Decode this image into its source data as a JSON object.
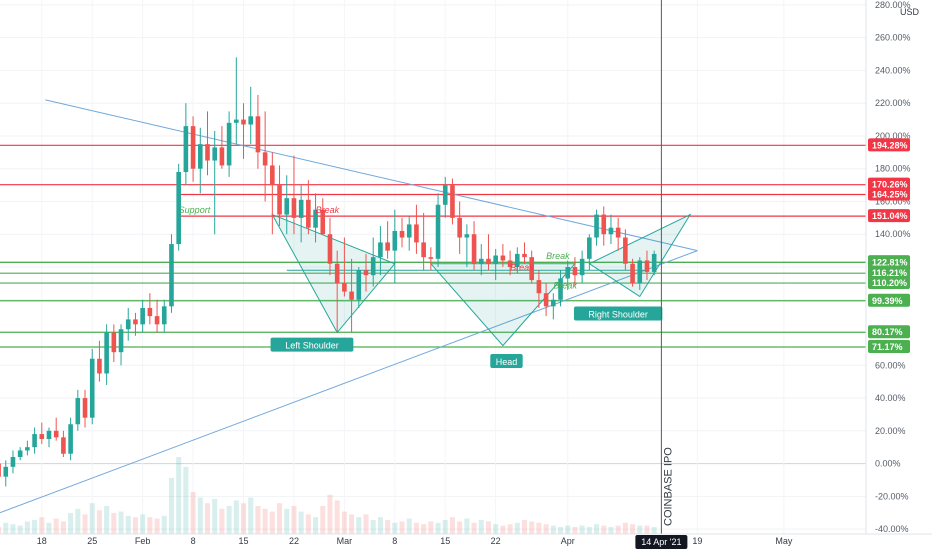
{
  "chart_data": {
    "type": "candlestick",
    "currency": "USD",
    "y_ticks": [
      "280.00%",
      "260.00%",
      "240.00%",
      "220.00%",
      "200.00%",
      "180.00%",
      "160.00%",
      "140.00%",
      "120.00%",
      "100.00%",
      "80.00%",
      "60.00%",
      "40.00%",
      "20.00%",
      "0.00%",
      "-20.00%",
      "-40.00%"
    ],
    "y_tick_values": [
      280,
      260,
      240,
      220,
      200,
      180,
      160,
      140,
      120,
      100,
      80,
      60,
      40,
      20,
      0,
      -20,
      -40
    ],
    "ylim": [
      -43,
      283
    ],
    "x_ticks": [
      {
        "label": "18",
        "day": -14
      },
      {
        "label": "25",
        "day": -7
      },
      {
        "label": "Feb",
        "day": 0
      },
      {
        "label": "8",
        "day": 7
      },
      {
        "label": "15",
        "day": 14
      },
      {
        "label": "22",
        "day": 21
      },
      {
        "label": "Mar",
        "day": 28
      },
      {
        "label": "8",
        "day": 35
      },
      {
        "label": "15",
        "day": 42
      },
      {
        "label": "22",
        "day": 49
      },
      {
        "label": "Apr",
        "day": 59
      },
      {
        "label": "19",
        "day": 77
      },
      {
        "label": "May",
        "day": 89
      }
    ],
    "xlim": [
      -19.8,
      100.4
    ],
    "crosshair": {
      "day": 72,
      "label": "14 Apr '21"
    },
    "ipo_label": "COINBASE IPO",
    "horizontal_levels": [
      {
        "value": 194.28,
        "label": "194.28%",
        "color": "#f23645"
      },
      {
        "value": 170.26,
        "label": "170.26%",
        "color": "#f23645"
      },
      {
        "value": 164.25,
        "label": "164.25%",
        "color": "#f23645"
      },
      {
        "value": 151.04,
        "label": "151.04%",
        "color": "#f23645"
      },
      {
        "value": 122.87,
        "label": "122.87%",
        "color": "#26a69a"
      },
      {
        "value": 122.81,
        "label": "122.81%",
        "color": "#4caf50"
      },
      {
        "value": 116.21,
        "label": "116.21%",
        "color": "#4caf50"
      },
      {
        "value": 110.2,
        "label": "110.20%",
        "color": "#4caf50"
      },
      {
        "value": 99.39,
        "label": "99.39%",
        "color": "#4caf50"
      },
      {
        "value": 80.17,
        "label": "80.17%",
        "color": "#4caf50"
      },
      {
        "value": 71.17,
        "label": "71.17%",
        "color": "#4caf50"
      }
    ],
    "annotations": [
      {
        "text": "Support",
        "day": 5,
        "value": 153,
        "color": "#4caf50"
      },
      {
        "text": "Break",
        "day": 24,
        "value": 153,
        "color": "#f23645"
      },
      {
        "text": "Break",
        "day": 51,
        "value": 118,
        "color": "#f23645"
      },
      {
        "text": "Break",
        "day": 56,
        "value": 125,
        "color": "#4caf50"
      },
      {
        "text": "Break",
        "day": 57,
        "value": 107,
        "color": "#4caf50"
      }
    ],
    "pattern_labels": [
      {
        "text": "Left Shoulder",
        "day": 23.5,
        "value": 72
      },
      {
        "text": "Head",
        "day": 50.5,
        "value": 62
      },
      {
        "text": "Right Shoulder",
        "day": 66,
        "value": 91
      }
    ],
    "candles": [
      [
        -20,
        0,
        5,
        -12,
        -8
      ],
      [
        -19,
        -8,
        2,
        -14,
        -2
      ],
      [
        -18,
        -2,
        8,
        -6,
        4
      ],
      [
        -17,
        4,
        10,
        2,
        8
      ],
      [
        -16,
        8,
        14,
        5,
        10
      ],
      [
        -15,
        10,
        22,
        6,
        18
      ],
      [
        -14,
        18,
        25,
        12,
        15
      ],
      [
        -13,
        15,
        22,
        10,
        20
      ],
      [
        -12,
        20,
        28,
        14,
        16
      ],
      [
        -11,
        16,
        20,
        4,
        6
      ],
      [
        -10,
        6,
        28,
        2,
        24
      ],
      [
        -9,
        24,
        45,
        20,
        40
      ],
      [
        -8,
        40,
        45,
        22,
        28
      ],
      [
        -7,
        28,
        70,
        24,
        64
      ],
      [
        -6,
        64,
        75,
        50,
        55
      ],
      [
        -5,
        55,
        85,
        48,
        80
      ],
      [
        -4,
        80,
        85,
        62,
        68
      ],
      [
        -3,
        68,
        85,
        60,
        82
      ],
      [
        -2,
        82,
        95,
        75,
        88
      ],
      [
        -1,
        88,
        92,
        78,
        85
      ],
      [
        0,
        85,
        100,
        80,
        95
      ],
      [
        1,
        95,
        104,
        85,
        90
      ],
      [
        2,
        90,
        100,
        80,
        85
      ],
      [
        3,
        85,
        100,
        80,
        96
      ],
      [
        4,
        96,
        140,
        92,
        134
      ],
      [
        5,
        134,
        183,
        130,
        178
      ],
      [
        6,
        178,
        220,
        170,
        206
      ],
      [
        7,
        206,
        212,
        172,
        180
      ],
      [
        8,
        180,
        205,
        165,
        195
      ],
      [
        9,
        195,
        215,
        176,
        185
      ],
      [
        10,
        185,
        203,
        140,
        193
      ],
      [
        11,
        193,
        206,
        180,
        182
      ],
      [
        12,
        182,
        215,
        175,
        208
      ],
      [
        13,
        208,
        248,
        195,
        210
      ],
      [
        14,
        210,
        220,
        186,
        207
      ],
      [
        15,
        207,
        230,
        195,
        212
      ],
      [
        16,
        212,
        225,
        180,
        190
      ],
      [
        17,
        190,
        215,
        160,
        182
      ],
      [
        18,
        182,
        190,
        140,
        170
      ],
      [
        19,
        170,
        182,
        145,
        152
      ],
      [
        20,
        152,
        176,
        140,
        162
      ],
      [
        21,
        162,
        188,
        140,
        150
      ],
      [
        22,
        150,
        170,
        135,
        161
      ],
      [
        23,
        161,
        173,
        140,
        144
      ],
      [
        24,
        144,
        165,
        135,
        155
      ],
      [
        25,
        155,
        162,
        140,
        140
      ],
      [
        26,
        140,
        150,
        115,
        122
      ],
      [
        27,
        122,
        130,
        80,
        110
      ],
      [
        28,
        110,
        138,
        102,
        105
      ],
      [
        29,
        105,
        125,
        80,
        100
      ],
      [
        30,
        100,
        120,
        95,
        118
      ],
      [
        31,
        118,
        128,
        105,
        115
      ],
      [
        32,
        115,
        138,
        108,
        126
      ],
      [
        33,
        126,
        145,
        115,
        135
      ],
      [
        34,
        135,
        148,
        125,
        130
      ],
      [
        35,
        130,
        155,
        110,
        142
      ],
      [
        36,
        142,
        150,
        132,
        138
      ],
      [
        37,
        138,
        151,
        130,
        146
      ],
      [
        38,
        146,
        158,
        128,
        135
      ],
      [
        39,
        135,
        153,
        118,
        126
      ],
      [
        40,
        126,
        132,
        118,
        125
      ],
      [
        41,
        125,
        165,
        120,
        158
      ],
      [
        42,
        158,
        175,
        150,
        170
      ],
      [
        43,
        170,
        174,
        146,
        150
      ],
      [
        44,
        150,
        160,
        128,
        138
      ],
      [
        45,
        138,
        146,
        120,
        140
      ],
      [
        46,
        140,
        148,
        118,
        122
      ],
      [
        47,
        122,
        134,
        115,
        125
      ],
      [
        48,
        125,
        140,
        118,
        122
      ],
      [
        49,
        122,
        131,
        112,
        127
      ],
      [
        50,
        127,
        134,
        120,
        124
      ],
      [
        51,
        124,
        130,
        115,
        120
      ],
      [
        52,
        120,
        132,
        116,
        128
      ],
      [
        53,
        128,
        135,
        122,
        126
      ],
      [
        54,
        126,
        130,
        110,
        112
      ],
      [
        55,
        112,
        118,
        95,
        104
      ],
      [
        56,
        104,
        110,
        90,
        96
      ],
      [
        57,
        96,
        104,
        88,
        100
      ],
      [
        58,
        100,
        118,
        96,
        113
      ],
      [
        59,
        113,
        124,
        106,
        120
      ],
      [
        60,
        120,
        126,
        108,
        115
      ],
      [
        61,
        115,
        130,
        110,
        125
      ],
      [
        62,
        125,
        140,
        118,
        138
      ],
      [
        63,
        138,
        155,
        133,
        152
      ],
      [
        64,
        152,
        157,
        133,
        140
      ],
      [
        65,
        140,
        152,
        134,
        144
      ],
      [
        66,
        144,
        150,
        130,
        138
      ],
      [
        67,
        138,
        143,
        118,
        122
      ],
      [
        68,
        122,
        125,
        108,
        110
      ],
      [
        69,
        110,
        126,
        106,
        124
      ],
      [
        70,
        124,
        130,
        112,
        117
      ],
      [
        71,
        117,
        130,
        115,
        128
      ]
    ],
    "volume_max": 100,
    "volume": [
      5,
      8,
      7,
      6,
      9,
      10,
      12,
      8,
      11,
      9,
      15,
      18,
      14,
      22,
      17,
      20,
      15,
      16,
      13,
      12,
      14,
      12,
      11,
      13,
      40,
      55,
      48,
      30,
      26,
      22,
      25,
      18,
      20,
      24,
      22,
      26,
      20,
      18,
      16,
      22,
      18,
      20,
      16,
      14,
      12,
      20,
      28,
      24,
      16,
      14,
      12,
      14,
      10,
      12,
      10,
      8,
      9,
      11,
      8,
      7,
      9,
      8,
      10,
      12,
      9,
      11,
      8,
      10,
      9,
      7,
      6,
      7,
      8,
      10,
      9,
      8,
      7,
      6,
      5,
      6,
      5,
      6,
      5,
      7,
      6,
      5,
      6,
      8,
      7,
      6,
      6,
      5
    ]
  }
}
